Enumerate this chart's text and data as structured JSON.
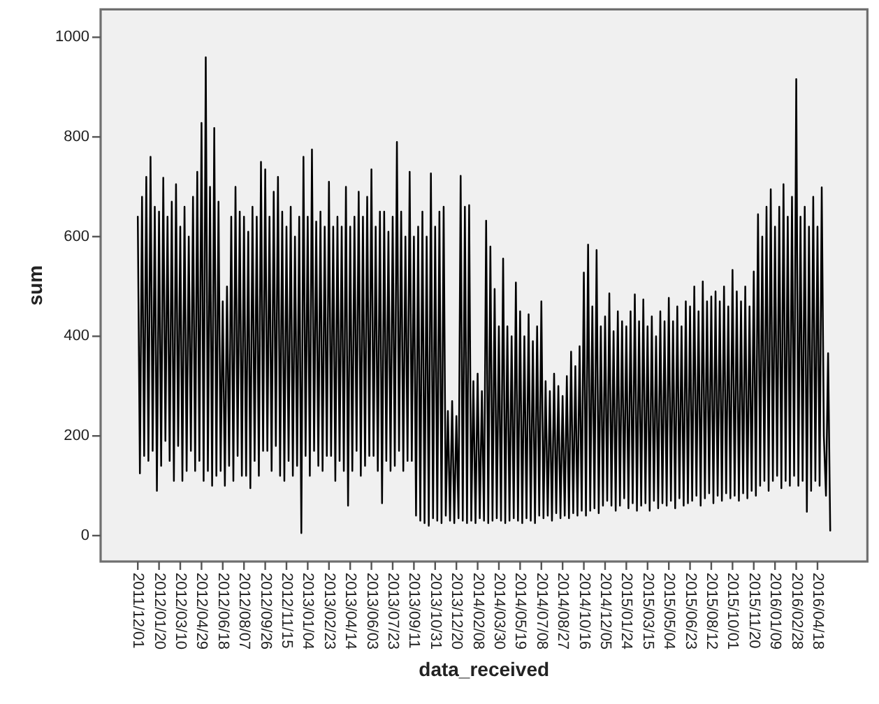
{
  "chart_data": {
    "type": "line",
    "xlabel": "data_received",
    "ylabel": "sum",
    "categories": [
      "2011/12/01",
      null,
      null,
      null,
      null,
      null,
      null,
      null,
      null,
      null,
      "2012/01/20",
      null,
      null,
      null,
      null,
      null,
      null,
      null,
      null,
      null,
      "2012/03/10",
      null,
      null,
      null,
      null,
      null,
      null,
      null,
      null,
      null,
      "2012/04/29",
      null,
      null,
      null,
      null,
      null,
      null,
      null,
      null,
      null,
      "2012/06/18",
      null,
      null,
      null,
      null,
      null,
      null,
      null,
      null,
      null,
      "2012/08/07",
      null,
      null,
      null,
      null,
      null,
      null,
      null,
      null,
      null,
      "2012/09/26",
      null,
      null,
      null,
      null,
      null,
      null,
      null,
      null,
      null,
      "2012/11/15",
      null,
      null,
      null,
      null,
      null,
      null,
      null,
      null,
      null,
      "2013/01/04",
      null,
      null,
      null,
      null,
      null,
      null,
      null,
      null,
      null,
      "2013/02/23",
      null,
      null,
      null,
      null,
      null,
      null,
      null,
      null,
      null,
      "2013/04/14",
      null,
      null,
      null,
      null,
      null,
      null,
      null,
      null,
      null,
      "2013/06/03",
      null,
      null,
      null,
      null,
      null,
      null,
      null,
      null,
      null,
      "2013/07/23",
      null,
      null,
      null,
      null,
      null,
      null,
      null,
      null,
      null,
      "2013/09/11",
      null,
      null,
      null,
      null,
      null,
      null,
      null,
      null,
      null,
      "2013/10/31",
      null,
      null,
      null,
      null,
      null,
      null,
      null,
      null,
      null,
      "2013/12/20",
      null,
      null,
      null,
      null,
      null,
      null,
      null,
      null,
      null,
      "2014/02/08",
      null,
      null,
      null,
      null,
      null,
      null,
      null,
      null,
      null,
      "2014/03/30",
      null,
      null,
      null,
      null,
      null,
      null,
      null,
      null,
      null,
      "2014/05/19",
      null,
      null,
      null,
      null,
      null,
      null,
      null,
      null,
      null,
      "2014/07/08",
      null,
      null,
      null,
      null,
      null,
      null,
      null,
      null,
      null,
      "2014/08/27",
      null,
      null,
      null,
      null,
      null,
      null,
      null,
      null,
      null,
      "2014/10/16",
      null,
      null,
      null,
      null,
      null,
      null,
      null,
      null,
      null,
      "2014/12/05",
      null,
      null,
      null,
      null,
      null,
      null,
      null,
      null,
      null,
      "2015/01/24",
      null,
      null,
      null,
      null,
      null,
      null,
      null,
      null,
      null,
      "2015/03/15",
      null,
      null,
      null,
      null,
      null,
      null,
      null,
      null,
      null,
      "2015/05/04",
      null,
      null,
      null,
      null,
      null,
      null,
      null,
      null,
      null,
      "2015/06/23",
      null,
      null,
      null,
      null,
      null,
      null,
      null,
      null,
      null,
      "2015/08/12",
      null,
      null,
      null,
      null,
      null,
      null,
      null,
      null,
      null,
      "2015/10/01",
      null,
      null,
      null,
      null,
      null,
      null,
      null,
      null,
      null,
      "2015/11/20",
      null,
      null,
      null,
      null,
      null,
      null,
      null,
      null,
      null,
      "2016/01/09",
      null,
      null,
      null,
      null,
      null,
      null,
      null,
      null,
      null,
      "2016/02/28",
      null,
      null,
      null,
      null,
      null,
      null,
      null,
      null,
      null,
      "2016/04/18",
      null,
      null,
      null,
      null,
      null,
      null
    ],
    "series": [
      {
        "color": "#000000",
        "values": [
          640,
          125,
          680,
          160,
          720,
          150,
          760,
          170,
          660,
          90,
          650,
          140,
          718,
          190,
          640,
          150,
          670,
          110,
          705,
          180,
          620,
          110,
          660,
          130,
          600,
          170,
          680,
          130,
          730,
          150,
          828,
          110,
          960,
          130,
          700,
          100,
          818,
          120,
          670,
          130,
          470,
          100,
          500,
          140,
          640,
          110,
          700,
          160,
          650,
          120,
          640,
          120,
          610,
          95,
          660,
          150,
          640,
          120,
          750,
          170,
          735,
          170,
          640,
          130,
          690,
          180,
          720,
          120,
          650,
          110,
          620,
          150,
          660,
          120,
          600,
          140,
          640,
          5,
          760,
          160,
          640,
          120,
          775,
          170,
          630,
          140,
          650,
          130,
          620,
          160,
          710,
          160,
          620,
          110,
          640,
          150,
          620,
          130,
          700,
          60,
          620,
          130,
          640,
          170,
          690,
          120,
          640,
          140,
          680,
          160,
          735,
          160,
          620,
          130,
          650,
          65,
          650,
          150,
          610,
          130,
          640,
          140,
          790,
          170,
          650,
          130,
          600,
          150,
          730,
          150,
          600,
          40,
          620,
          30,
          650,
          25,
          600,
          20,
          727,
          35,
          620,
          30,
          650,
          25,
          660,
          40,
          250,
          30,
          270,
          25,
          240,
          35,
          722,
          30,
          660,
          25,
          663,
          30,
          310,
          25,
          325,
          35,
          290,
          30,
          632,
          25,
          580,
          30,
          495,
          35,
          420,
          30,
          556,
          25,
          420,
          30,
          400,
          35,
          508,
          30,
          450,
          25,
          400,
          35,
          444,
          30,
          390,
          25,
          420,
          40,
          470,
          35,
          310,
          40,
          290,
          30,
          325,
          45,
          300,
          35,
          280,
          40,
          320,
          35,
          369,
          45,
          340,
          40,
          380,
          50,
          528,
          40,
          584,
          50,
          460,
          55,
          573,
          45,
          420,
          60,
          440,
          70,
          486,
          60,
          410,
          50,
          450,
          60,
          430,
          75,
          420,
          55,
          450,
          65,
          484,
          50,
          430,
          60,
          474,
          65,
          420,
          50,
          440,
          70,
          400,
          55,
          450,
          65,
          430,
          60,
          477,
          70,
          430,
          55,
          460,
          75,
          420,
          60,
          470,
          65,
          460,
          70,
          500,
          80,
          450,
          60,
          510,
          75,
          470,
          85,
          480,
          65,
          490,
          80,
          470,
          70,
          500,
          85,
          460,
          75,
          533,
          80,
          490,
          70,
          470,
          85,
          500,
          75,
          460,
          90,
          530,
          80,
          645,
          100,
          600,
          110,
          660,
          90,
          695,
          110,
          620,
          120,
          660,
          95,
          705,
          110,
          640,
          100,
          680,
          120,
          916,
          100,
          640,
          110,
          660,
          48,
          620,
          90,
          680,
          110,
          620,
          100,
          699,
          200,
          80,
          366,
          10
        ]
      }
    ],
    "ylim": [
      -52,
      1056
    ],
    "yticks": [
      0,
      200,
      400,
      600,
      800,
      1000
    ],
    "line_style": "solid"
  }
}
